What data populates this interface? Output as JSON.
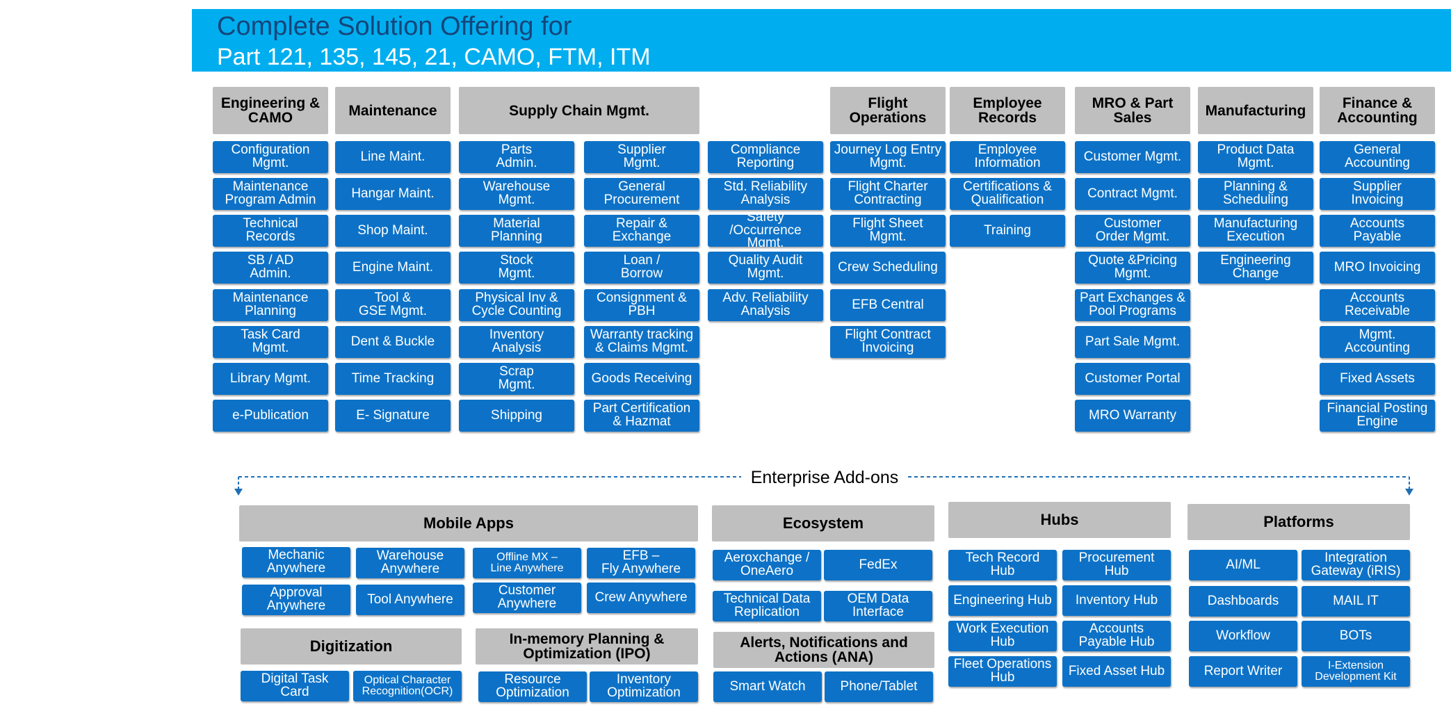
{
  "header": {
    "title": "Complete Solution Offering for",
    "subtitle": "Part 121, 135, 145, 21, CAMO, FTM, ITM"
  },
  "colors": {
    "banner": "#00AEEF",
    "title": "#16457A",
    "box": "#0D72C7",
    "header": "#BFBFBF"
  },
  "top_headers": [
    "Engineering &\nCAMO",
    "Maintenance",
    "Supply Chain Mgmt.",
    "Flight\nOperations",
    "Employee\nRecords",
    "MRO & Part\nSales",
    "Manufacturing",
    "Finance &\nAccounting"
  ],
  "top_columns": [
    [
      "Configuration\nMgmt.",
      "Maintenance\nProgram Admin",
      "Technical\nRecords",
      "SB / AD\nAdmin.",
      "Maintenance\nPlanning",
      "Task Card\nMgmt.",
      "Library Mgmt.",
      "e-Publication"
    ],
    [
      "Line Maint.",
      "Hangar  Maint.",
      "Shop Maint.",
      "Engine  Maint.",
      "Tool &\nGSE Mgmt.",
      "Dent & Buckle",
      "Time Tracking",
      "E- Signature"
    ],
    [
      "Parts\nAdmin.",
      "Warehouse\nMgmt.",
      "Material\nPlanning",
      "Stock\nMgmt.",
      "Physical Inv &\nCycle Counting",
      "Inventory\nAnalysis",
      "Scrap\nMgmt.",
      "Shipping"
    ],
    [
      "Supplier\nMgmt.",
      "General\nProcurement",
      "Repair &\nExchange",
      "Loan /\nBorrow",
      "Consignment  &\nPBH",
      "Warranty tracking\n& Claims Mgmt.",
      "Goods Receiving",
      "Part Certification\n& Hazmat"
    ],
    [
      "Compliance\nReporting",
      "Std. Reliability\nAnalysis",
      "Safety\n/Occurrence\nMgmt.",
      "Quality Audit\nMgmt.",
      "Adv. Reliability\nAnalysis"
    ],
    [
      "Journey Log Entry\nMgmt.",
      "Flight Charter\nContracting",
      "Flight Sheet\nMgmt.",
      "Crew Scheduling",
      "EFB Central",
      "Flight Contract\nInvoicing"
    ],
    [
      "Employee\nInformation",
      "Certifications &\nQualification",
      "Training"
    ],
    [
      "Customer  Mgmt.",
      "Contract  Mgmt.",
      "Customer\nOrder Mgmt.",
      "Quote &Pricing\nMgmt.",
      "Part Exchanges  &\nPool Programs",
      "Part Sale Mgmt.",
      "Customer Portal",
      "MRO Warranty"
    ],
    [
      "Product Data\nMgmt.",
      "Planning  &\nScheduling",
      "Manufacturing\nExecution",
      "Engineering\nChange"
    ],
    [
      "General\nAccounting",
      "Supplier\nInvoicing",
      "Accounts\nPayable",
      "MRO Invoicing",
      "Accounts\nReceivable",
      "Mgmt.\nAccounting",
      "Fixed Assets",
      "Financial Posting\nEngine"
    ]
  ],
  "enterprise_addons_label": "Enterprise Add-ons",
  "addon_headers": [
    "Mobile Apps",
    "Ecosystem",
    "Hubs",
    "Platforms",
    "Digitization",
    "In-memory Planning &\nOptimization (IPO)",
    "Alerts, Notifications and\nActions (ANA)"
  ],
  "addon_items": [
    "Mechanic\nAnywhere",
    "Warehouse\nAnywhere",
    "Offline  MX –\nLine Anywhere",
    "EFB –\nFly Anywhere",
    "Approval\nAnywhere",
    "Tool Anywhere",
    "Customer\nAnywhere",
    "Crew Anywhere",
    "Aeroxchange  /\nOneAero",
    "FedEx",
    "Technical Data\nReplication",
    "OEM Data\nInterface",
    "Tech Record\nHub",
    "Procurement\nHub",
    "Engineering Hub",
    "Inventory Hub",
    "Work Execution\nHub",
    "Accounts\nPayable Hub",
    "Fleet Operations\nHub",
    "Fixed Asset Hub",
    "AI/ML",
    "Integration\nGateway (iRIS)",
    "Dashboards",
    "MAIL IT",
    "Workflow",
    "BOTs",
    "Report Writer",
    "I-Extension\nDevelopment Kit",
    "Digital Task\nCard",
    "Optical Character\nRecognition(OCR)",
    "Resource\nOptimization",
    "Inventory\nOptimization",
    "Smart Watch",
    "Phone/Tablet"
  ]
}
